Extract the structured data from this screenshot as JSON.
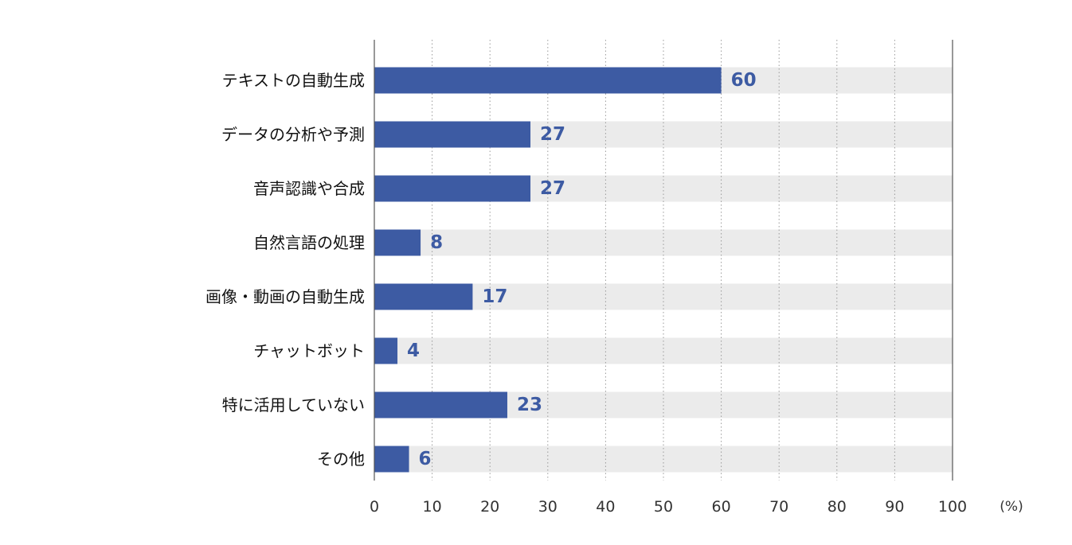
{
  "chart_data": {
    "type": "bar",
    "orientation": "horizontal",
    "categories": [
      "テキストの自動生成",
      "データの分析や予測",
      "音声認識や合成",
      "自然言語の処理",
      "画像・動画の自動生成",
      "チャットボット",
      "特に活用していない",
      "その他"
    ],
    "values": [
      60,
      27,
      27,
      8,
      17,
      4,
      23,
      6
    ],
    "xlim": [
      0,
      100
    ],
    "xticks": [
      0,
      10,
      20,
      30,
      40,
      50,
      60,
      70,
      80,
      90,
      100
    ],
    "unit_label": "(%)",
    "grid": true,
    "colors": {
      "bar": "#3d5ba3",
      "track": "#ebebeb",
      "value_text": "#3d5ba3",
      "grid": "#9a9a9a",
      "axis": "#555555"
    }
  }
}
